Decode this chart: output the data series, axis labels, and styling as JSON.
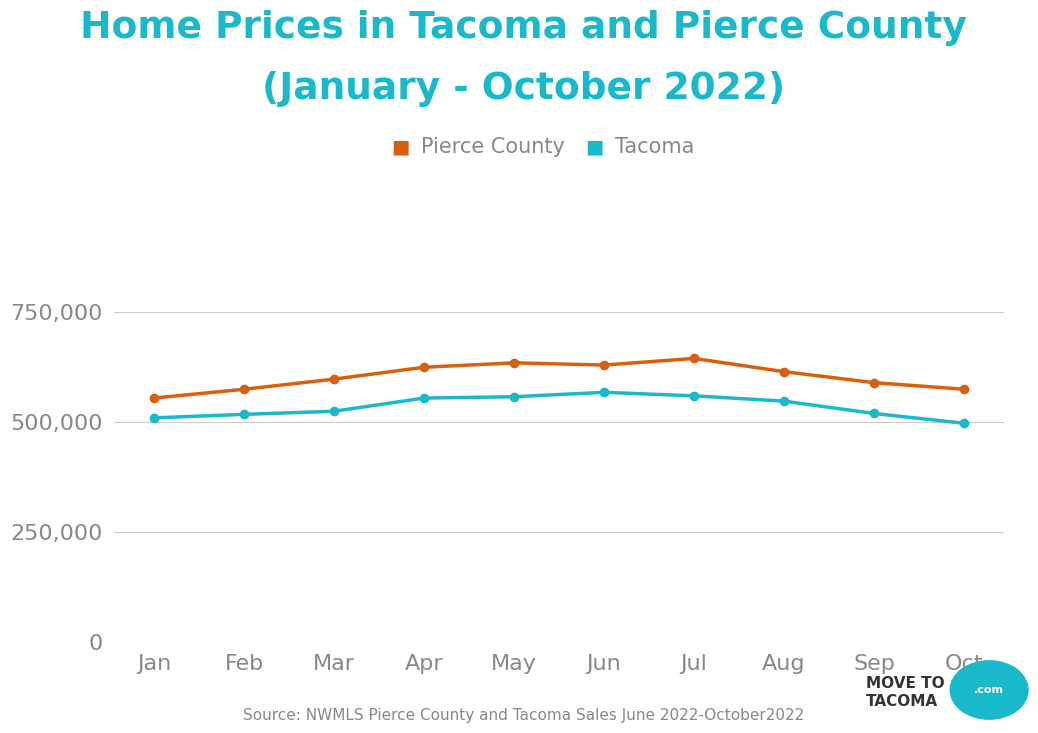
{
  "title_line1": "Home Prices in Tacoma and Pierce County",
  "title_line2": "(January - October 2022)",
  "title_color": "#1ab8cb",
  "months": [
    "Jan",
    "Feb",
    "Mar",
    "Apr",
    "May",
    "Jun",
    "Jul",
    "Aug",
    "Sep",
    "Oct"
  ],
  "pierce_county": [
    555000,
    575000,
    598000,
    625000,
    635000,
    630000,
    645000,
    615000,
    590000,
    575000
  ],
  "tacoma": [
    510000,
    518000,
    525000,
    555000,
    558000,
    568000,
    560000,
    548000,
    520000,
    497756
  ],
  "pierce_color": "#d95f0e",
  "tacoma_color": "#1ab8cb",
  "yticks": [
    0,
    250000,
    500000,
    750000
  ],
  "ylim": [
    0,
    820000
  ],
  "source_text": "Source: NWMLS Pierce County and Tacoma Sales June 2022-October2022",
  "bg_color": "#ffffff",
  "grid_color": "#cccccc",
  "legend_pierce": "Pierce County",
  "legend_tacoma": "Tacoma",
  "tick_color": "#888888"
}
